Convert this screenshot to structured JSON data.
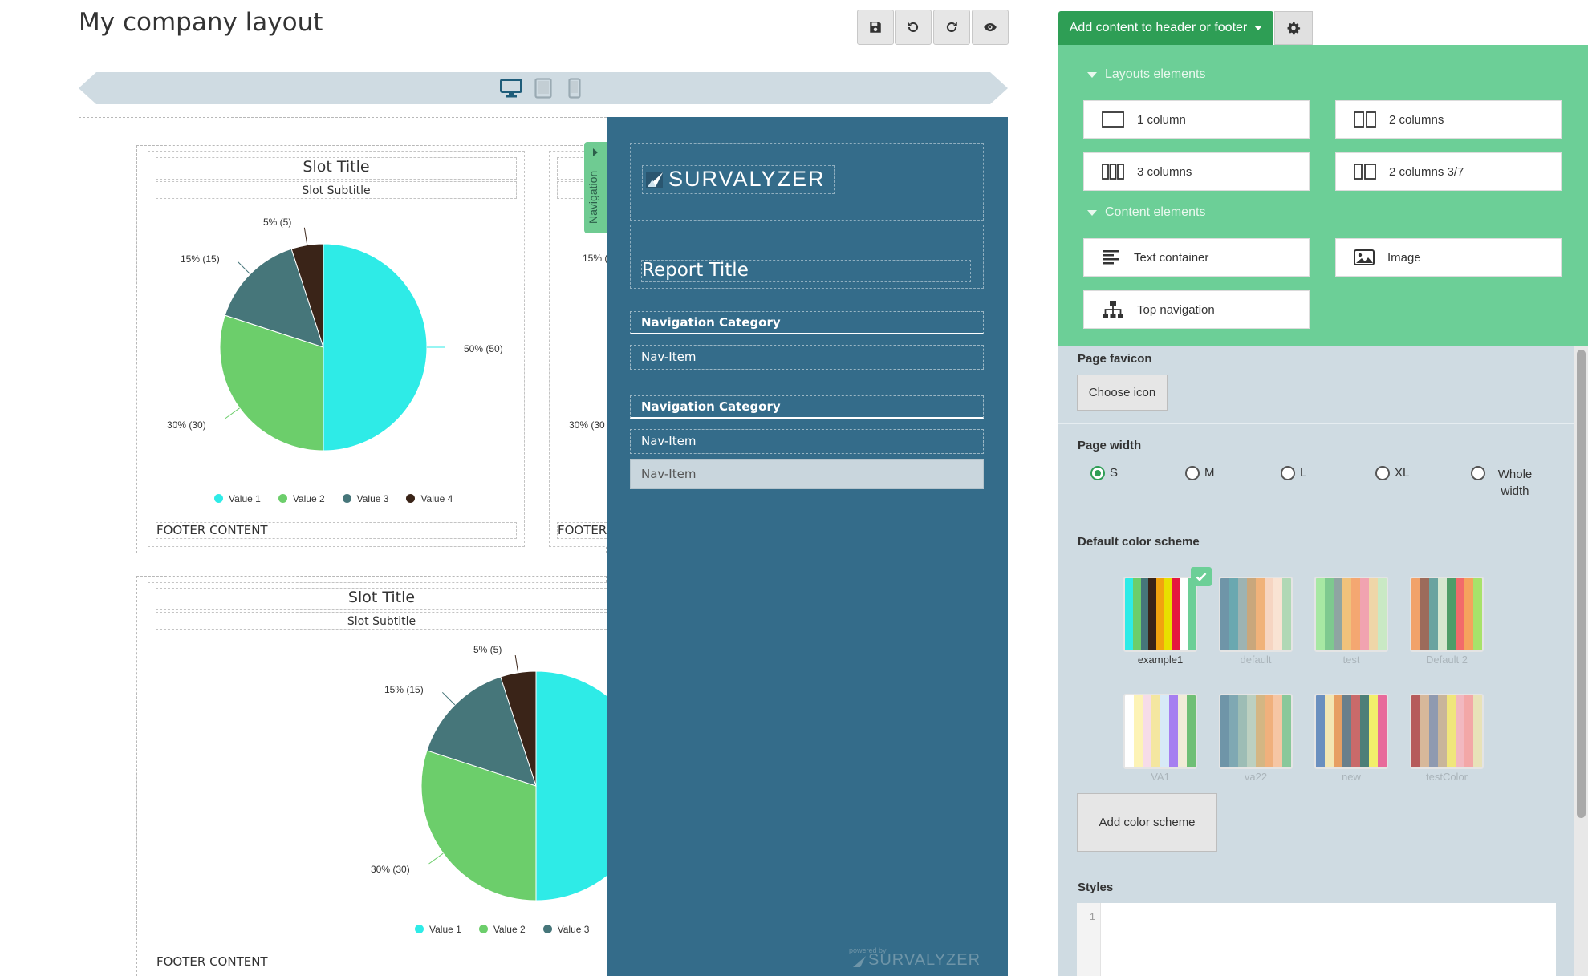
{
  "header": {
    "title": "My company layout",
    "toolbar": {
      "save_icon": "save-icon",
      "undo_icon": "undo-icon",
      "redo_icon": "redo-icon",
      "preview_icon": "eye-icon"
    }
  },
  "devices": [
    "desktop-icon",
    "tablet-icon",
    "mobile-icon"
  ],
  "slots": [
    {
      "title": "Slot Title",
      "subtitle": "Slot Subtitle",
      "footer": "FOOTER CONTENT",
      "labels": [
        "50% (50)",
        "30% (30)",
        "15% (15)",
        "5% (5)"
      ],
      "legend": [
        "Value 1",
        "Value 2",
        "Value 3",
        "Value 4"
      ]
    },
    {
      "labels": [
        "15% (",
        "30% (30"
      ],
      "footer": "FOOTER"
    },
    {
      "title": "Slot Title",
      "subtitle": "Slot Subtitle",
      "footer": "FOOTER CONTENT",
      "labels": [
        "30% (30)",
        "15% (15)",
        "5% (5)"
      ],
      "legend": [
        "Value 1",
        "Value 2",
        "Value 3"
      ]
    }
  ],
  "chart_data": {
    "type": "pie",
    "categories": [
      "Value 1",
      "Value 2",
      "Value 3",
      "Value 4"
    ],
    "values": [
      50,
      30,
      15,
      5
    ],
    "colors": [
      "#2eebe7",
      "#6cce6b",
      "#46767a",
      "#3a2418"
    ]
  },
  "navigation": {
    "tab_label": "Navigation",
    "logo_text": "SURVALYZER",
    "report_title": "Report Title",
    "groups": [
      {
        "category": "Navigation Category",
        "items": [
          "Nav-Item"
        ]
      },
      {
        "category": "Navigation Category",
        "items": [
          "Nav-Item",
          "Nav-Item"
        ]
      }
    ],
    "powered_by": "powered by",
    "footer_logo": "SURVALYZER"
  },
  "sidebar": {
    "add_button": "Add content to header or footer",
    "layouts_heading": "Layouts elements",
    "layouts": [
      "1 column",
      "2 columns",
      "3 columns",
      "2 columns 3/7"
    ],
    "content_heading": "Content elements",
    "content": [
      "Text container",
      "Image",
      "Top navigation"
    ],
    "favicon": {
      "label": "Page favicon",
      "button": "Choose icon"
    },
    "page_width": {
      "label": "Page width",
      "options": [
        "S",
        "M",
        "L",
        "XL",
        "Whole width"
      ],
      "selected": "S"
    },
    "color_scheme": {
      "label": "Default color scheme",
      "schemes": [
        {
          "name": "example1",
          "colors": [
            "#2eebe7",
            "#6cce6b",
            "#46767a",
            "#3a2418",
            "#f2a30f",
            "#e8e000",
            "#e5173f",
            "#ffffff",
            "#6ccf97"
          ]
        },
        {
          "name": "default",
          "colors": [
            "#6f95a8",
            "#6aa8b0",
            "#9db3b2",
            "#c9a77c",
            "#f0b27a",
            "#f6d5c2",
            "#f9e3d3",
            "#b0d8b5"
          ]
        },
        {
          "name": "test",
          "colors": [
            "#a7e8a3",
            "#7ec98f",
            "#8fa5a2",
            "#f0c27b",
            "#f4a771",
            "#f1a3b0",
            "#efd6a8",
            "#c9e9c4"
          ]
        },
        {
          "name": "Default 2",
          "colors": [
            "#f1a26a",
            "#9c6b5b",
            "#69a3a0",
            "#d6e7d0",
            "#4f9d69",
            "#f26a6a",
            "#f5a25d",
            "#a7e26a"
          ]
        },
        {
          "name": "VA1",
          "colors": [
            "#ffffff",
            "#fdf3b6",
            "#f6dce8",
            "#f4e6a0",
            "#d7e9f7",
            "#a67ff0",
            "#f1ecd7",
            "#6fbf75"
          ]
        },
        {
          "name": "va22",
          "colors": [
            "#6f95a8",
            "#7fa8b3",
            "#9dbdb5",
            "#bcd0c0",
            "#d4b683",
            "#f0b07c",
            "#f6c6a4",
            "#89c89a"
          ]
        },
        {
          "name": "new",
          "colors": [
            "#6a8fbf",
            "#f3e6b3",
            "#e79f63",
            "#6a7f8b",
            "#c96a6a",
            "#4d7f78",
            "#f2ef6b",
            "#e86a9b"
          ]
        },
        {
          "name": "testColor",
          "colors": [
            "#b65b5b",
            "#d7b89a",
            "#8f9ab0",
            "#c9b59a",
            "#f0e67b",
            "#f2b8c0",
            "#f3a7a7",
            "#e8e2b8"
          ]
        }
      ],
      "selected": "example1",
      "add_button": "Add color scheme"
    },
    "styles": {
      "label": "Styles",
      "line_number": "1"
    }
  }
}
